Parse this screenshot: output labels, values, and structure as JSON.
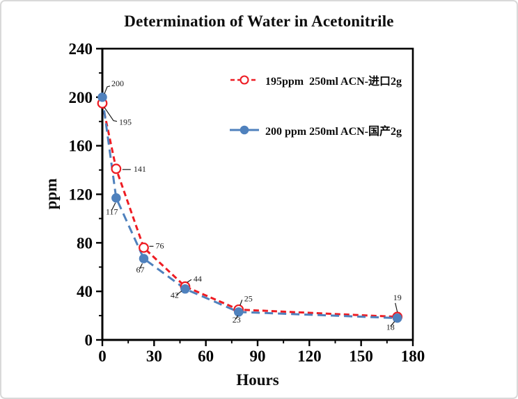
{
  "window": {
    "background": "#ffffff",
    "border_color": "#d9d9d9"
  },
  "chart_data": {
    "type": "line",
    "title": "Determination of Water in Acetonitrile",
    "xlabel": "Hours",
    "ylabel": "ppm",
    "xlim": [
      0,
      180
    ],
    "ylim": [
      0,
      240
    ],
    "x_major_ticks": [
      0,
      30,
      60,
      90,
      120,
      150,
      180
    ],
    "x_minor_ticks": [
      15,
      45,
      75,
      105,
      135,
      165
    ],
    "y_major_ticks": [
      0,
      40,
      80,
      120,
      160,
      200,
      240
    ],
    "y_minor_ticks": [
      20,
      60,
      100,
      140,
      180,
      220
    ],
    "grid": false,
    "legend_position": "inside-top-center",
    "axis_color": "#000000",
    "point_label_color": "#1a1a1a",
    "show_point_labels": true,
    "series": [
      {
        "name": "195ppm  250ml ACN-进口2g",
        "color": "#ee1c23",
        "line_style": "dashed",
        "marker": "open-circle",
        "x": [
          0,
          8,
          24,
          48,
          79,
          171
        ],
        "values": [
          195,
          141,
          76,
          44,
          25,
          19
        ]
      },
      {
        "name": "200 ppm 250ml ACN-国产2g",
        "color": "#4f81bd",
        "line_style": "dashed",
        "marker": "filled-circle",
        "x": [
          0,
          8,
          24,
          48,
          79,
          171
        ],
        "values": [
          200,
          117,
          67,
          42,
          23,
          18
        ]
      }
    ]
  }
}
